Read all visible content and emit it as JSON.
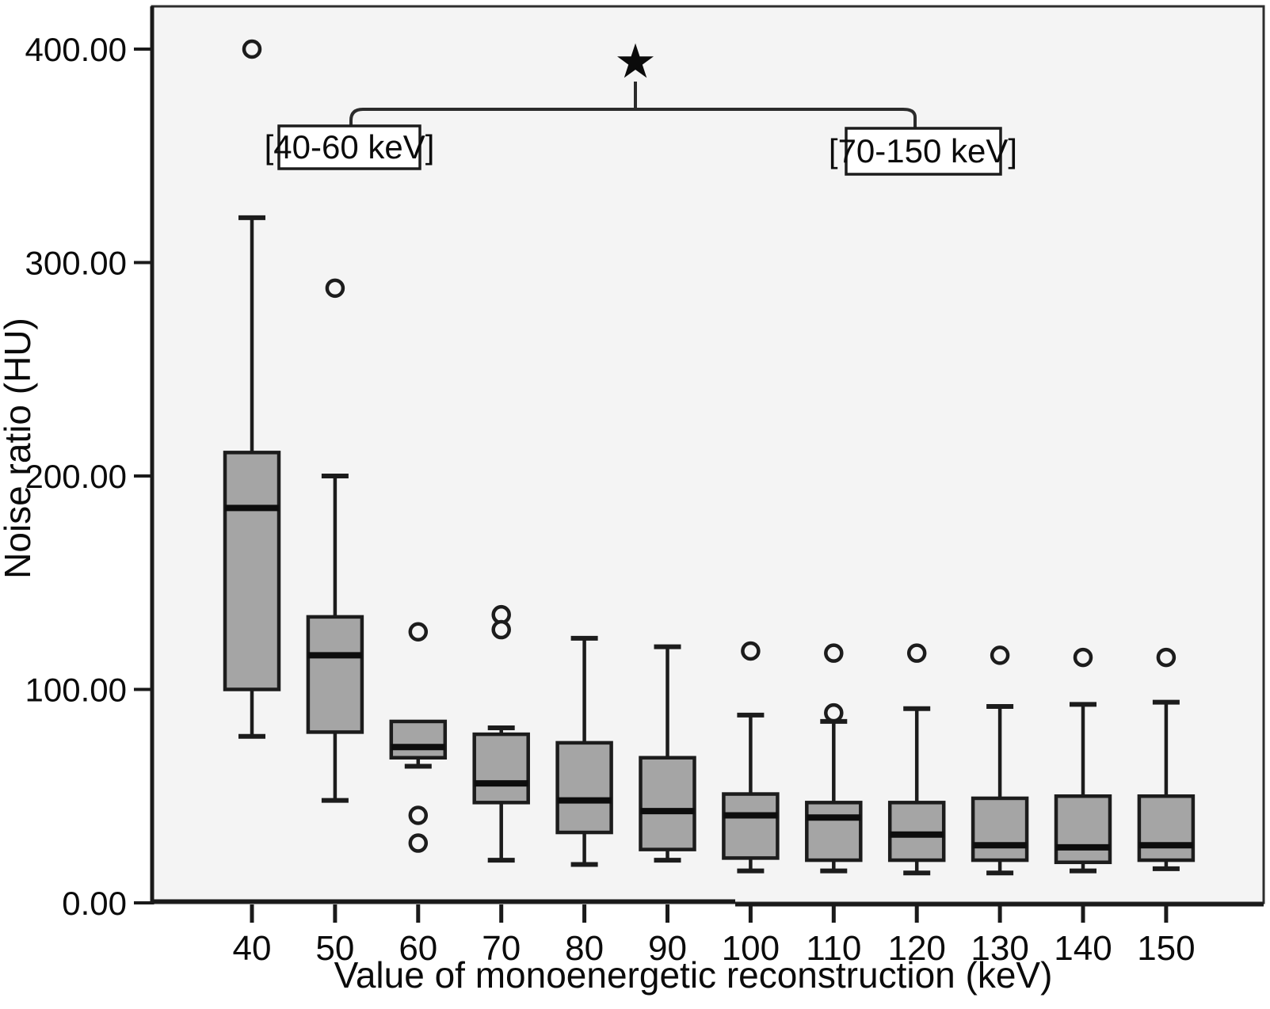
{
  "figure": {
    "type_hint": "SPSS-style box-and-whisker plot, grayscale"
  },
  "colors": {
    "page_bg": "#ffffff",
    "plot_bg": "#f4f4f4",
    "frame": "#2e2e2e",
    "axis_line": "#1a1a1a",
    "box_fill": "#a5a5a5",
    "box_stroke": "#1c1c1c",
    "median": "#0d0d0d",
    "whisker": "#1c1c1c",
    "outlier_stroke": "#1c1c1c",
    "annotation_line": "#2b2b2b",
    "label_box_bg": "#ffffff",
    "label_box_border": "#1c1c1c",
    "text": "#0b0b0b"
  },
  "chart_data": {
    "type": "boxplot",
    "title": "",
    "xlabel": "Value of monoenergetic reconstruction (keV)",
    "ylabel": "Noise ratio (HU)",
    "ylim": [
      0,
      420
    ],
    "grid": "off",
    "legend": "none",
    "y_ticks": [
      {
        "value": 0,
        "label": "0.00"
      },
      {
        "value": 100,
        "label": "100.00"
      },
      {
        "value": 200,
        "label": "200.00"
      },
      {
        "value": 300,
        "label": "300.00"
      },
      {
        "value": 400,
        "label": "400.00"
      }
    ],
    "categories": [
      "40",
      "50",
      "60",
      "70",
      "80",
      "90",
      "100",
      "110",
      "120",
      "130",
      "140",
      "150"
    ],
    "boxes": [
      {
        "category": "40",
        "whisker_low": 78,
        "q1": 100,
        "median": 185,
        "q3": 211,
        "whisker_high": 321,
        "outliers": [
          400
        ]
      },
      {
        "category": "50",
        "whisker_low": 48,
        "q1": 80,
        "median": 116,
        "q3": 134,
        "whisker_high": 200,
        "outliers": [
          288
        ]
      },
      {
        "category": "60",
        "whisker_low": 64,
        "q1": 68,
        "median": 73,
        "q3": 85,
        "whisker_high": 85,
        "outliers": [
          127,
          41,
          28
        ]
      },
      {
        "category": "70",
        "whisker_low": 20,
        "q1": 47,
        "median": 56,
        "q3": 79,
        "whisker_high": 82,
        "outliers": [
          135,
          128
        ]
      },
      {
        "category": "80",
        "whisker_low": 18,
        "q1": 33,
        "median": 48,
        "q3": 75,
        "whisker_high": 124,
        "outliers": []
      },
      {
        "category": "90",
        "whisker_low": 20,
        "q1": 25,
        "median": 43,
        "q3": 68,
        "whisker_high": 120,
        "outliers": []
      },
      {
        "category": "100",
        "whisker_low": 15,
        "q1": 21,
        "median": 41,
        "q3": 51,
        "whisker_high": 88,
        "outliers": [
          118
        ]
      },
      {
        "category": "110",
        "whisker_low": 15,
        "q1": 20,
        "median": 40,
        "q3": 47,
        "whisker_high": 85,
        "outliers": [
          117,
          89
        ]
      },
      {
        "category": "120",
        "whisker_low": 14,
        "q1": 20,
        "median": 32,
        "q3": 47,
        "whisker_high": 91,
        "outliers": [
          117
        ]
      },
      {
        "category": "130",
        "whisker_low": 14,
        "q1": 20,
        "median": 27,
        "q3": 49,
        "whisker_high": 92,
        "outliers": [
          116
        ]
      },
      {
        "category": "140",
        "whisker_low": 15,
        "q1": 19,
        "median": 26,
        "q3": 50,
        "whisker_high": 93,
        "outliers": [
          115
        ]
      },
      {
        "category": "150",
        "whisker_low": 16,
        "q1": 20,
        "median": 27,
        "q3": 50,
        "whisker_high": 94,
        "outliers": [
          115
        ]
      }
    ],
    "annotations": {
      "star_symbol": "★",
      "groups": [
        {
          "label": "[40-60 keV]"
        },
        {
          "label": "[70-150 keV]"
        }
      ]
    }
  }
}
